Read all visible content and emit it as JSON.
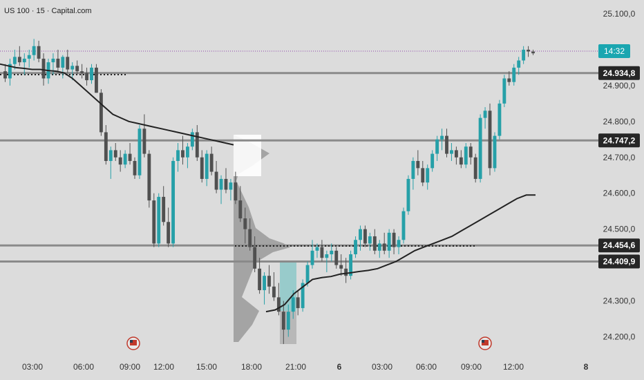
{
  "header": {
    "title": "US 100 · 15 · Capital.com"
  },
  "price_label": {
    "time": "14:32",
    "color": "#1aa6b0"
  },
  "colors": {
    "up": "#26a0a8",
    "down": "#505050",
    "level": "#8a8a8a",
    "ma": "#222222",
    "badge": "#262626",
    "current_line": "#8e44ad",
    "profile": "#9a9a9a"
  },
  "events": [
    {
      "icon": "us-flag-icon",
      "x": "09:00+1.5h"
    },
    {
      "icon": "us-flag-icon",
      "x": "6 09:00+2.5h"
    }
  ],
  "chart_data": {
    "type": "candlestick",
    "title": "US 100 · 15 · Capital.com",
    "yaxis": {
      "range": [
        24150,
        25150
      ],
      "ticks": [
        "25.100,0",
        "24.900,0",
        "24.800,0",
        "24.700,0",
        "24.600,0",
        "24.500,0",
        "24.300,0",
        "24.200,0"
      ],
      "tick_values": [
        25100,
        24900,
        24800,
        24700,
        24600,
        24500,
        24300,
        24200
      ]
    },
    "xaxis": {
      "ticks": [
        "03:00",
        "06:00",
        "09:00",
        "12:00",
        "15:00",
        "18:00",
        "21:00",
        "6",
        "03:00",
        "06:00",
        "09:00",
        "12:00",
        "8"
      ],
      "bold": [
        "6",
        "8"
      ]
    },
    "levels": [
      {
        "label": "24.934,8",
        "value": 24934.8
      },
      {
        "label": "24.747,2",
        "value": 24747.2
      },
      {
        "label": "24.454,6",
        "value": 24454.6
      },
      {
        "label": "24.409,9",
        "value": 24409.9
      }
    ],
    "current_price": {
      "time": "14:32",
      "value": 24990
    },
    "candles": [
      [
        24940,
        24960,
        24910,
        24920
      ],
      [
        24920,
        24975,
        24900,
        24960
      ],
      [
        24960,
        25000,
        24945,
        24980
      ],
      [
        24980,
        25010,
        24955,
        24965
      ],
      [
        24965,
        24990,
        24930,
        24975
      ],
      [
        24975,
        25000,
        24950,
        24985
      ],
      [
        24985,
        25030,
        24970,
        25010
      ],
      [
        25010,
        25025,
        24965,
        24975
      ],
      [
        24975,
        24990,
        24900,
        24920
      ],
      [
        24920,
        24975,
        24905,
        24965
      ],
      [
        24965,
        24990,
        24930,
        24975
      ],
      [
        24975,
        25000,
        24940,
        24950
      ],
      [
        24950,
        24985,
        24920,
        24980
      ],
      [
        24980,
        25000,
        24935,
        24945
      ],
      [
        24945,
        24965,
        24915,
        24955
      ],
      [
        24955,
        24970,
        24930,
        24940
      ],
      [
        24940,
        24960,
        24920,
        24935
      ],
      [
        24935,
        24950,
        24900,
        24915
      ],
      [
        24915,
        24960,
        24905,
        24950
      ],
      [
        24950,
        24960,
        24880,
        24880
      ],
      [
        24880,
        24890,
        24760,
        24770
      ],
      [
        24770,
        24790,
        24680,
        24690
      ],
      [
        24690,
        24730,
        24640,
        24720
      ],
      [
        24720,
        24740,
        24690,
        24700
      ],
      [
        24700,
        24720,
        24660,
        24680
      ],
      [
        24680,
        24720,
        24670,
        24710
      ],
      [
        24710,
        24740,
        24680,
        24690
      ],
      [
        24690,
        24700,
        24640,
        24650
      ],
      [
        24650,
        24790,
        24640,
        24780
      ],
      [
        24780,
        24820,
        24700,
        24710
      ],
      [
        24710,
        24720,
        24560,
        24580
      ],
      [
        24580,
        24600,
        24450,
        24460
      ],
      [
        24460,
        24600,
        24450,
        24590
      ],
      [
        24590,
        24620,
        24510,
        24520
      ],
      [
        24520,
        24560,
        24450,
        24460
      ],
      [
        24460,
        24700,
        24450,
        24690
      ],
      [
        24690,
        24740,
        24660,
        24720
      ],
      [
        24720,
        24760,
        24680,
        24700
      ],
      [
        24700,
        24740,
        24670,
        24730
      ],
      [
        24730,
        24780,
        24720,
        24770
      ],
      [
        24770,
        24790,
        24690,
        24700
      ],
      [
        24700,
        24720,
        24630,
        24640
      ],
      [
        24640,
        24720,
        24620,
        24710
      ],
      [
        24710,
        24730,
        24650,
        24660
      ],
      [
        24660,
        24690,
        24600,
        24610
      ],
      [
        24610,
        24650,
        24570,
        24640
      ],
      [
        24640,
        24670,
        24600,
        24610
      ],
      [
        24610,
        24640,
        24580,
        24630
      ],
      [
        24630,
        24660,
        24570,
        24580
      ],
      [
        24580,
        24620,
        24520,
        24530
      ],
      [
        24530,
        24560,
        24460,
        24500
      ],
      [
        24500,
        24530,
        24440,
        24450
      ],
      [
        24450,
        24480,
        24380,
        24390
      ],
      [
        24390,
        24420,
        24320,
        24330
      ],
      [
        24330,
        24380,
        24290,
        24370
      ],
      [
        24370,
        24400,
        24320,
        24340
      ],
      [
        24340,
        24380,
        24300,
        24310
      ],
      [
        24310,
        24350,
        24260,
        24270
      ],
      [
        24270,
        24300,
        24180,
        24220
      ],
      [
        24220,
        24290,
        24200,
        24270
      ],
      [
        24270,
        24330,
        24250,
        24310
      ],
      [
        24310,
        24330,
        24260,
        24280
      ],
      [
        24280,
        24360,
        24270,
        24350
      ],
      [
        24350,
        24410,
        24340,
        24400
      ],
      [
        24400,
        24470,
        24390,
        24440
      ],
      [
        24440,
        24460,
        24420,
        24450
      ],
      [
        24450,
        24470,
        24410,
        24420
      ],
      [
        24420,
        24440,
        24380,
        24430
      ],
      [
        24430,
        24460,
        24410,
        24440
      ],
      [
        24440,
        24450,
        24390,
        24400
      ],
      [
        24400,
        24430,
        24370,
        24390
      ],
      [
        24390,
        24420,
        24350,
        24370
      ],
      [
        24370,
        24440,
        24360,
        24430
      ],
      [
        24430,
        24480,
        24420,
        24470
      ],
      [
        24470,
        24510,
        24440,
        24500
      ],
      [
        24500,
        24510,
        24450,
        24460
      ],
      [
        24460,
        24490,
        24440,
        24480
      ],
      [
        24480,
        24500,
        24430,
        24440
      ],
      [
        24440,
        24470,
        24420,
        24460
      ],
      [
        24460,
        24490,
        24430,
        24440
      ],
      [
        24440,
        24500,
        24420,
        24490
      ],
      [
        24490,
        24500,
        24430,
        24450
      ],
      [
        24450,
        24480,
        24430,
        24470
      ],
      [
        24470,
        24560,
        24460,
        24550
      ],
      [
        24550,
        24650,
        24540,
        24640
      ],
      [
        24640,
        24700,
        24610,
        24690
      ],
      [
        24690,
        24720,
        24650,
        24670
      ],
      [
        24670,
        24690,
        24620,
        24630
      ],
      [
        24630,
        24680,
        24610,
        24670
      ],
      [
        24670,
        24720,
        24660,
        24710
      ],
      [
        24710,
        24760,
        24690,
        24750
      ],
      [
        24750,
        24780,
        24720,
        24760
      ],
      [
        24760,
        24780,
        24700,
        24710
      ],
      [
        24710,
        24740,
        24690,
        24720
      ],
      [
        24720,
        24730,
        24680,
        24700
      ],
      [
        24700,
        24720,
        24670,
        24680
      ],
      [
        24680,
        24740,
        24670,
        24730
      ],
      [
        24730,
        24740,
        24680,
        24700
      ],
      [
        24700,
        24710,
        24630,
        24640
      ],
      [
        24640,
        24820,
        24630,
        24810
      ],
      [
        24810,
        24840,
        24780,
        24830
      ],
      [
        24830,
        24850,
        24650,
        24670
      ],
      [
        24670,
        24770,
        24660,
        24760
      ],
      [
        24760,
        24860,
        24750,
        24850
      ],
      [
        24850,
        24930,
        24840,
        24920
      ],
      [
        24920,
        24940,
        24900,
        24910
      ],
      [
        24910,
        24960,
        24900,
        24950
      ],
      [
        24950,
        24980,
        24930,
        24970
      ],
      [
        24970,
        25010,
        24960,
        25000
      ],
      [
        25000,
        25010,
        24980,
        24995
      ],
      [
        24995,
        25000,
        24985,
        24990
      ]
    ],
    "moving_average_1": [
      24960,
      24955,
      24950,
      24948,
      24945,
      24945,
      24942,
      24940,
      24935,
      24920,
      24900,
      24880,
      24860,
      24840,
      24820,
      24810,
      24800,
      24795,
      24790,
      24785,
      24780,
      24775,
      24770,
      24765,
      24760,
      24755,
      24750,
      24745,
      24740,
      24735
    ],
    "moving_average_2": [
      24270,
      24275,
      24290,
      24320,
      24340,
      24360,
      24365,
      24368,
      24375,
      24378,
      24382,
      24385,
      24390,
      24400,
      24410,
      24425,
      24440,
      24450,
      24460,
      24470,
      24480,
      24495,
      24510,
      24525,
      24540,
      24555,
      24570,
      24585,
      24595,
      24595
    ]
  }
}
